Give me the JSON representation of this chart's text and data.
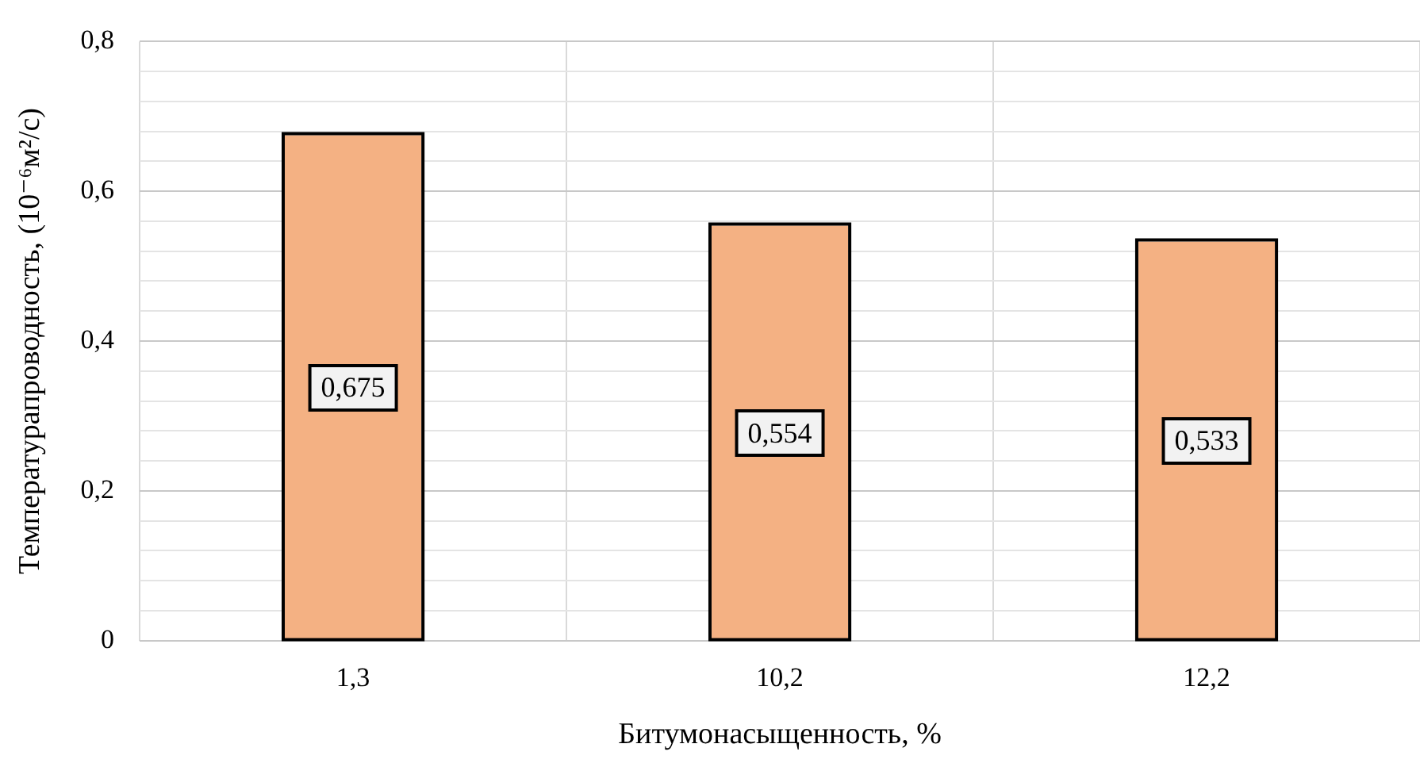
{
  "chart_data": {
    "type": "bar",
    "xlabel": "Битумонасыщенность, %",
    "ylabel": "Температурапроводность, (10⁻⁶м²/с)",
    "categories": [
      "1,3",
      "10,2",
      "12,2"
    ],
    "values": [
      0.675,
      0.554,
      0.533
    ],
    "color": "#f4b183",
    "ylim": [
      0,
      0.8
    ],
    "yticks": [
      0,
      {
        "value": 0.04,
        "label": null
      },
      {
        "value": 0.08,
        "label": null
      },
      {
        "value": 0.12,
        "label": null
      },
      {
        "value": 0.16,
        "label": null
      },
      {
        "value": 0.2,
        "label": "0,2"
      },
      {
        "value": 0.24,
        "label": null
      },
      {
        "value": 0.28,
        "label": null
      },
      {
        "value": 0.32,
        "label": null
      },
      {
        "value": 0.36,
        "label": null
      },
      {
        "value": 0.4,
        "label": "0,4"
      },
      {
        "value": 0.44,
        "label": null
      },
      {
        "value": 0.48,
        "label": null
      },
      {
        "value": 0.52,
        "label": null
      },
      {
        "value": 0.56,
        "label": null
      },
      {
        "value": 0.6,
        "label": "0,6"
      },
      {
        "value": 0.64,
        "label": null
      },
      {
        "value": 0.68,
        "label": null
      },
      {
        "value": 0.72,
        "label": null
      },
      {
        "value": 0.76,
        "label": null
      },
      {
        "value": 0.8,
        "label": "0,8"
      }
    ],
    "grid": true,
    "value_labels": [
      "0,675",
      "0,554",
      "0,533"
    ]
  }
}
